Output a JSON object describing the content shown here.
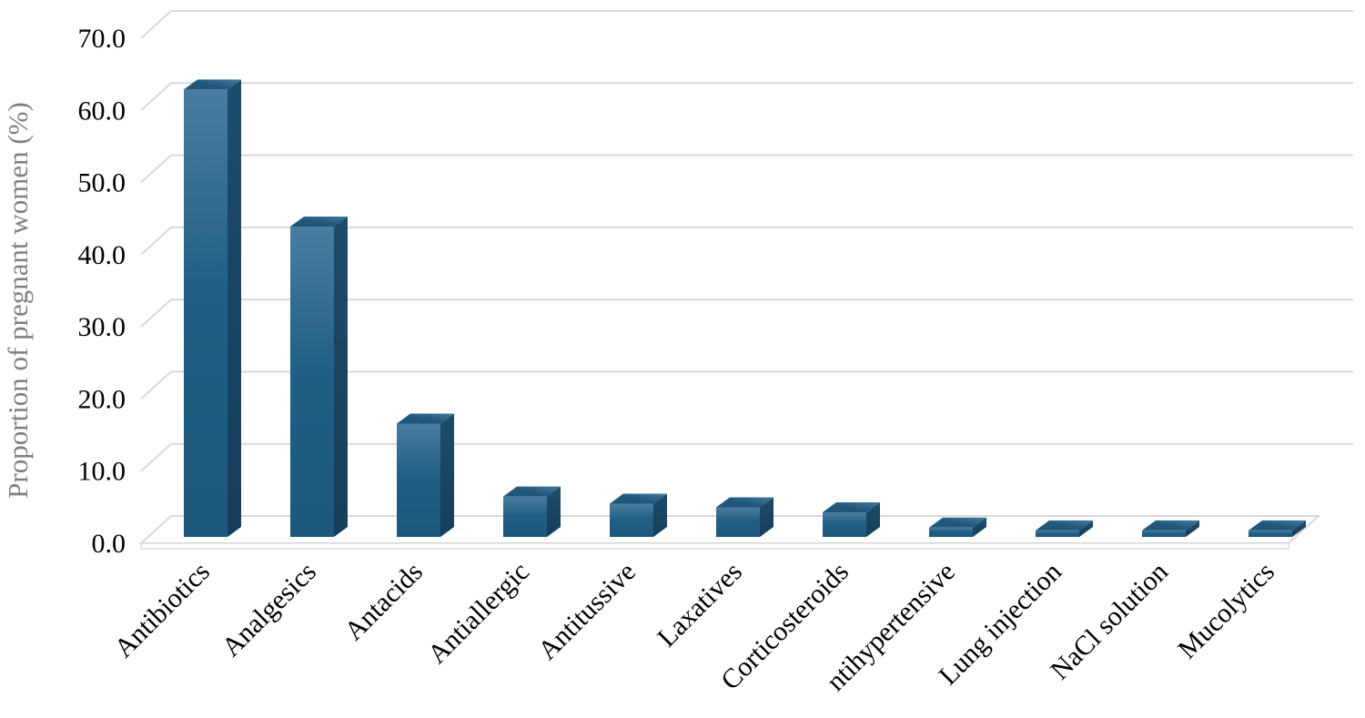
{
  "page": {
    "background": "#ffffff"
  },
  "chart_data": {
    "type": "bar",
    "style": "3d-column",
    "title": "",
    "xlabel": "",
    "ylabel": "Proportion of pregnant women (%)",
    "categories": [
      "Antibiotics",
      "Analgesics",
      "Antacids",
      "Antiallergic",
      "Antitussive",
      "Laxatives",
      "Corticosteroids",
      "ntihypertensive",
      "Lung injection",
      "NaCl solution",
      "Mucolytics"
    ],
    "values": [
      62.0,
      43.0,
      15.7,
      5.6,
      4.6,
      4.1,
      3.4,
      1.3,
      0.9,
      0.9,
      0.9
    ],
    "ylim": [
      0,
      70
    ],
    "ytick_step": 10,
    "ytick_labels": [
      "0.0",
      "10.0",
      "20.0",
      "30.0",
      "40.0",
      "50.0",
      "60.0",
      "70.0"
    ],
    "grid": true,
    "legend": false,
    "category_label_rotation_deg": -45,
    "colors": {
      "bar_front_top": "#4a7da0",
      "bar_front_mid": "#215f84",
      "bar_front_bottom": "#1c587c",
      "bar_side_top": "#1d4c6b",
      "bar_side_bottom": "#153e5a",
      "bar_top_light": "#45799c",
      "bar_top_dark": "#1f567a",
      "gridline": "#d9d9d9",
      "floor_fill": "#ffffff",
      "tick_text": "#000000",
      "ylabel_text": "#7f7f7f",
      "background": "#ffffff"
    }
  }
}
